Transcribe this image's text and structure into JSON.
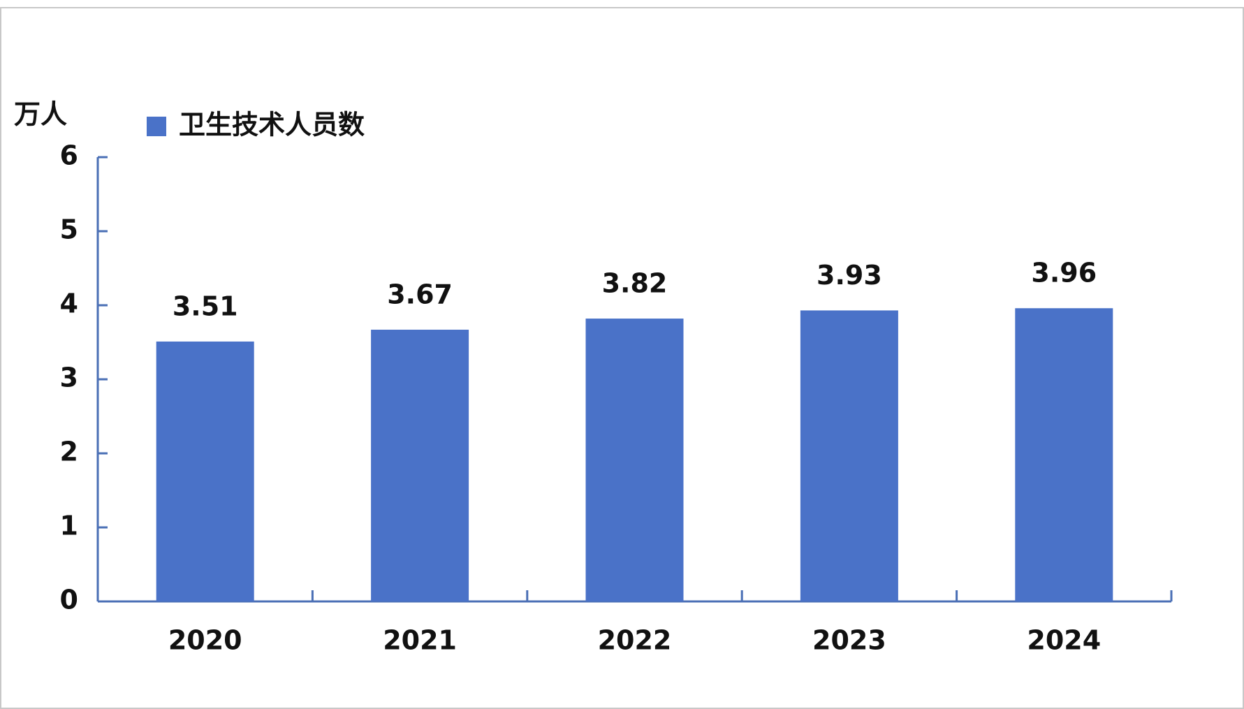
{
  "chart_data": {
    "type": "bar",
    "y_label": "万人",
    "categories": [
      "2020",
      "2021",
      "2022",
      "2023",
      "2024"
    ],
    "series": [
      {
        "name": "卫生技术人员数",
        "color": "#4a72c8",
        "values": [
          3.51,
          3.67,
          3.82,
          3.93,
          3.96
        ]
      }
    ],
    "ylim": [
      0,
      6
    ],
    "yticks": [
      0,
      1,
      2,
      3,
      4,
      5,
      6
    ],
    "axis_color": "#4a6fb5"
  }
}
